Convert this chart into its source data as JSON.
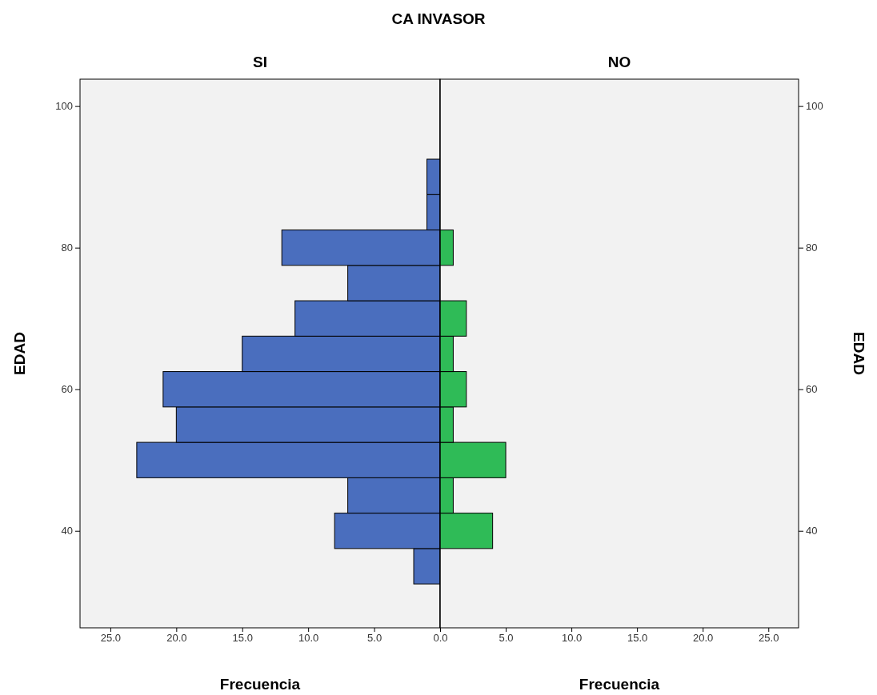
{
  "chart_data": [
    {
      "type": "histogram",
      "orientation": "horizontal",
      "title": "CA INVASOR",
      "subtitle": "SI",
      "xlabel": "Frecuencia",
      "ylabel": "EDAD",
      "color": "#4a6ebe",
      "bins": [
        32.5,
        37.5,
        42.5,
        47.5,
        52.5,
        57.5,
        62.5,
        67.5,
        72.5,
        77.5,
        82.5,
        87.5,
        92.5
      ],
      "values": [
        2,
        8,
        7,
        23,
        20,
        21,
        15,
        11,
        7,
        12,
        1,
        1
      ],
      "xlim": [
        27.3,
        0
      ],
      "xticks": [
        {
          "value": 25,
          "label": "25.0"
        },
        {
          "value": 20,
          "label": "20.0"
        },
        {
          "value": 15,
          "label": "15.0"
        },
        {
          "value": 10,
          "label": "10.0"
        },
        {
          "value": 5,
          "label": "5.0"
        },
        {
          "value": 0,
          "label": "0.0"
        }
      ],
      "ylim": [
        26.3,
        103.8
      ],
      "yticks": [
        40,
        60,
        80,
        100
      ]
    },
    {
      "type": "histogram",
      "orientation": "horizontal",
      "subtitle": "NO",
      "xlabel": "Frecuencia",
      "ylabel": "EDAD",
      "color": "#2fbb57",
      "bins": [
        32.5,
        37.5,
        42.5,
        47.5,
        52.5,
        57.5,
        62.5,
        67.5,
        72.5,
        77.5,
        82.5,
        87.5,
        92.5
      ],
      "values": [
        0,
        4,
        1,
        5,
        1,
        2,
        1,
        2,
        0,
        1,
        0,
        0
      ],
      "xlim": [
        0,
        27.3
      ],
      "xticks": [
        {
          "value": 0,
          "label": null
        },
        {
          "value": 5,
          "label": "5.0"
        },
        {
          "value": 10,
          "label": "10.0"
        },
        {
          "value": 15,
          "label": "15.0"
        },
        {
          "value": 20,
          "label": "20.0"
        },
        {
          "value": 25,
          "label": "25.0"
        }
      ],
      "ylim": [
        26.3,
        103.8
      ],
      "yticks": [
        40,
        60,
        80,
        100
      ]
    }
  ]
}
